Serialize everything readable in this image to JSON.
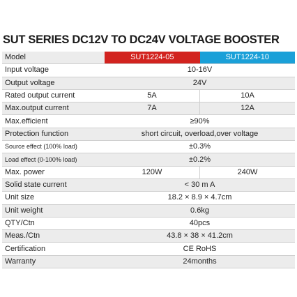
{
  "title": "SUT SERIES DC12V TO DC24V VOLTAGE BOOSTER",
  "colors": {
    "model_1": "#d2231f",
    "model_2": "#1aa0d8",
    "row_shade": "#ececec"
  },
  "header": {
    "label": "Model",
    "model_1": "SUT1224-05",
    "model_2": "SUT1224-10"
  },
  "rows": {
    "input_voltage": {
      "label": "Input voltage",
      "value": "10-16V"
    },
    "output_voltage": {
      "label": "Output voltage",
      "value": "24V"
    },
    "rated_output_current": {
      "label": "Rated output current",
      "model_1": "5A",
      "model_2": "10A"
    },
    "max_output_current": {
      "label": "Max.output current",
      "model_1": "7A",
      "model_2": "12A"
    },
    "max_efficient": {
      "label": "Max.efficient",
      "value": "≥90%"
    },
    "protection_function": {
      "label": "Protection function",
      "value": "short circuit, overload,over voltage"
    },
    "source_effect": {
      "label": "Source effect (100% load)",
      "value": "±0.3%"
    },
    "load_effect": {
      "label": "Load effect (0-100% load)",
      "value": "±0.2%"
    },
    "max_power": {
      "label": "Max. power",
      "model_1": "120W",
      "model_2": "240W"
    },
    "solid_state_current": {
      "label": "Solid state current",
      "value": "< 30 m A"
    },
    "unit_size": {
      "label": "Unit size",
      "value": "18.2 × 8.9 × 4.7cm"
    },
    "unit_weight": {
      "label": "Unit weight",
      "value": "0.6kg"
    },
    "qty_ctn": {
      "label": "QTY/Ctn",
      "value": "40pcs"
    },
    "meas_ctn": {
      "label": "Meas./Ctn",
      "value": "43.8 × 38 × 41.2cm"
    },
    "certification": {
      "label": "Certification",
      "value": "CE RoHS"
    },
    "warranty": {
      "label": "Warranty",
      "value": "24months"
    }
  }
}
